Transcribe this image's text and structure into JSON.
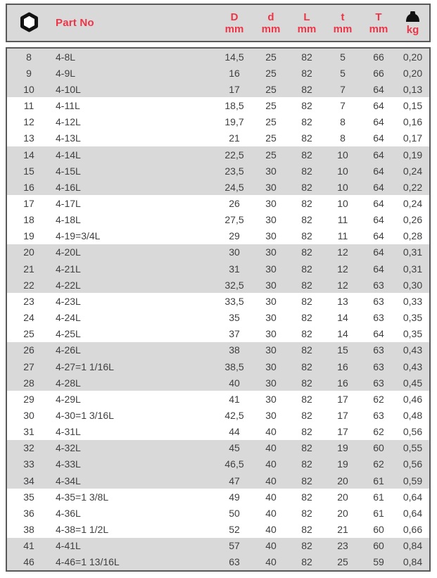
{
  "colors": {
    "accent_red": "#ee3447",
    "band_gray": "#d9d9d9",
    "border_gray": "#59595b",
    "text_gray": "#3f3f41",
    "icon_black": "#111111"
  },
  "table": {
    "header": {
      "size_icon": "hex-nut-icon",
      "part_no_label": "Part No",
      "columns": [
        {
          "label": "D",
          "unit": "mm"
        },
        {
          "label": "d",
          "unit": "mm"
        },
        {
          "label": "L",
          "unit": "mm"
        },
        {
          "label": "t",
          "unit": "mm"
        },
        {
          "label": "T",
          "unit": "mm"
        }
      ],
      "weight_icon": "weight-icon",
      "weight_unit": "kg"
    },
    "rows": [
      {
        "size": "8",
        "part_no": "4-8L",
        "D": "14,5",
        "d": "25",
        "L": "82",
        "t": "5",
        "T": "66",
        "kg": "0,20"
      },
      {
        "size": "9",
        "part_no": "4-9L",
        "D": "16",
        "d": "25",
        "L": "82",
        "t": "5",
        "T": "66",
        "kg": "0,20"
      },
      {
        "size": "10",
        "part_no": "4-10L",
        "D": "17",
        "d": "25",
        "L": "82",
        "t": "7",
        "T": "64",
        "kg": "0,13"
      },
      {
        "size": "11",
        "part_no": "4-11L",
        "D": "18,5",
        "d": "25",
        "L": "82",
        "t": "7",
        "T": "64",
        "kg": "0,15"
      },
      {
        "size": "12",
        "part_no": "4-12L",
        "D": "19,7",
        "d": "25",
        "L": "82",
        "t": "8",
        "T": "64",
        "kg": "0,16"
      },
      {
        "size": "13",
        "part_no": "4-13L",
        "D": "21",
        "d": "25",
        "L": "82",
        "t": "8",
        "T": "64",
        "kg": "0,17"
      },
      {
        "size": "14",
        "part_no": "4-14L",
        "D": "22,5",
        "d": "25",
        "L": "82",
        "t": "10",
        "T": "64",
        "kg": "0,19"
      },
      {
        "size": "15",
        "part_no": "4-15L",
        "D": "23,5",
        "d": "30",
        "L": "82",
        "t": "10",
        "T": "64",
        "kg": "0,24"
      },
      {
        "size": "16",
        "part_no": "4-16L",
        "D": "24,5",
        "d": "30",
        "L": "82",
        "t": "10",
        "T": "64",
        "kg": "0,22"
      },
      {
        "size": "17",
        "part_no": "4-17L",
        "D": "26",
        "d": "30",
        "L": "82",
        "t": "10",
        "T": "64",
        "kg": "0,24"
      },
      {
        "size": "18",
        "part_no": "4-18L",
        "D": "27,5",
        "d": "30",
        "L": "82",
        "t": "11",
        "T": "64",
        "kg": "0,26"
      },
      {
        "size": "19",
        "part_no": "4-19=3/4L",
        "D": "29",
        "d": "30",
        "L": "82",
        "t": "11",
        "T": "64",
        "kg": "0,28"
      },
      {
        "size": "20",
        "part_no": "4-20L",
        "D": "30",
        "d": "30",
        "L": "82",
        "t": "12",
        "T": "64",
        "kg": "0,31"
      },
      {
        "size": "21",
        "part_no": "4-21L",
        "D": "31",
        "d": "30",
        "L": "82",
        "t": "12",
        "T": "64",
        "kg": "0,31"
      },
      {
        "size": "22",
        "part_no": "4-22L",
        "D": "32,5",
        "d": "30",
        "L": "82",
        "t": "12",
        "T": "63",
        "kg": "0,30"
      },
      {
        "size": "23",
        "part_no": "4-23L",
        "D": "33,5",
        "d": "30",
        "L": "82",
        "t": "13",
        "T": "63",
        "kg": "0,33"
      },
      {
        "size": "24",
        "part_no": "4-24L",
        "D": "35",
        "d": "30",
        "L": "82",
        "t": "14",
        "T": "63",
        "kg": "0,35"
      },
      {
        "size": "25",
        "part_no": "4-25L",
        "D": "37",
        "d": "30",
        "L": "82",
        "t": "14",
        "T": "64",
        "kg": "0,35"
      },
      {
        "size": "26",
        "part_no": "4-26L",
        "D": "38",
        "d": "30",
        "L": "82",
        "t": "15",
        "T": "63",
        "kg": "0,43"
      },
      {
        "size": "27",
        "part_no": "4-27=1 1/16L",
        "D": "38,5",
        "d": "30",
        "L": "82",
        "t": "16",
        "T": "63",
        "kg": "0,43"
      },
      {
        "size": "28",
        "part_no": "4-28L",
        "D": "40",
        "d": "30",
        "L": "82",
        "t": "16",
        "T": "63",
        "kg": "0,45"
      },
      {
        "size": "29",
        "part_no": "4-29L",
        "D": "41",
        "d": "30",
        "L": "82",
        "t": "17",
        "T": "62",
        "kg": "0,46"
      },
      {
        "size": "30",
        "part_no": "4-30=1 3/16L",
        "D": "42,5",
        "d": "30",
        "L": "82",
        "t": "17",
        "T": "63",
        "kg": "0,48"
      },
      {
        "size": "31",
        "part_no": "4-31L",
        "D": "44",
        "d": "40",
        "L": "82",
        "t": "17",
        "T": "62",
        "kg": "0,56"
      },
      {
        "size": "32",
        "part_no": "4-32L",
        "D": "45",
        "d": "40",
        "L": "82",
        "t": "19",
        "T": "60",
        "kg": "0,55"
      },
      {
        "size": "33",
        "part_no": "4-33L",
        "D": "46,5",
        "d": "40",
        "L": "82",
        "t": "19",
        "T": "62",
        "kg": "0,56"
      },
      {
        "size": "34",
        "part_no": "4-34L",
        "D": "47",
        "d": "40",
        "L": "82",
        "t": "20",
        "T": "61",
        "kg": "0,59"
      },
      {
        "size": "35",
        "part_no": "4-35=1 3/8L",
        "D": "49",
        "d": "40",
        "L": "82",
        "t": "20",
        "T": "61",
        "kg": "0,64"
      },
      {
        "size": "36",
        "part_no": "4-36L",
        "D": "50",
        "d": "40",
        "L": "82",
        "t": "20",
        "T": "61",
        "kg": "0,64"
      },
      {
        "size": "38",
        "part_no": "4-38=1 1/2L",
        "D": "52",
        "d": "40",
        "L": "82",
        "t": "21",
        "T": "60",
        "kg": "0,66"
      },
      {
        "size": "41",
        "part_no": "4-41L",
        "D": "57",
        "d": "40",
        "L": "82",
        "t": "23",
        "T": "60",
        "kg": "0,84"
      },
      {
        "size": "46",
        "part_no": "4-46=1 13/16L",
        "D": "63",
        "d": "40",
        "L": "82",
        "t": "25",
        "T": "59",
        "kg": "0,84"
      }
    ]
  }
}
